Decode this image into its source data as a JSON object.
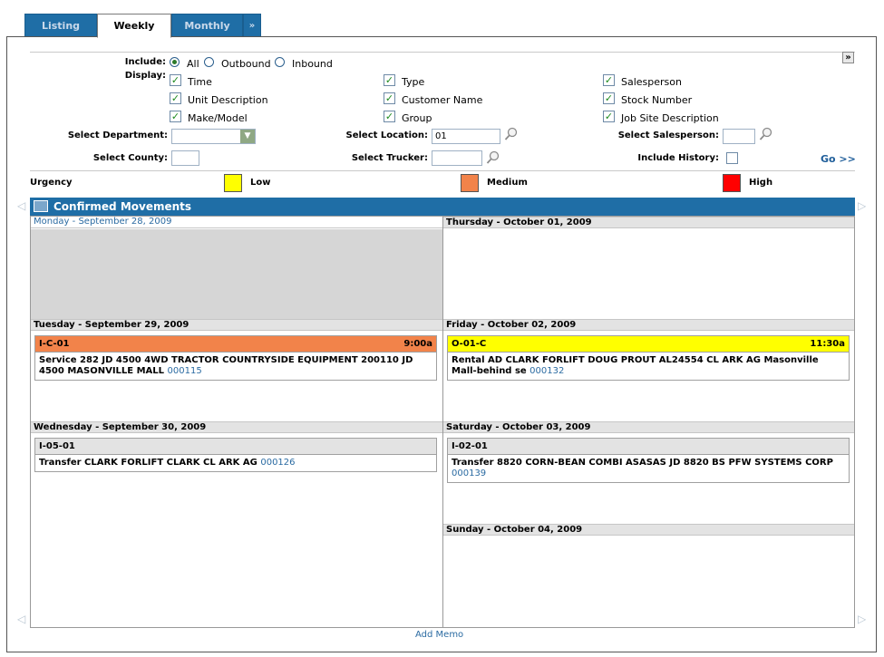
{
  "tabs": [
    {
      "label": "Listing"
    },
    {
      "label": "Weekly"
    },
    {
      "label": "Monthly"
    },
    {
      "label": "»"
    }
  ],
  "filters": {
    "include_label": "Include:",
    "include_options": [
      "All",
      "Outbound",
      "Inbound"
    ],
    "include_selected": "All",
    "display_label": "Display:",
    "display_options": [
      "Time",
      "Type",
      "Salesperson",
      "Unit Description",
      "Customer Name",
      "Stock Number",
      "Make/Model",
      "Group",
      "Job Site Description"
    ],
    "department_label": "Select Department:",
    "location_label": "Select Location:",
    "location_value": "01",
    "salesperson_label": "Select Salesperson:",
    "county_label": "Select County:",
    "trucker_label": "Select Trucker:",
    "history_label": "Include History:",
    "go_label": "Go >>"
  },
  "urgency": {
    "label": "Urgency",
    "levels": [
      {
        "name": "Low",
        "color": "#ffff00"
      },
      {
        "name": "Medium",
        "color": "#f2834a"
      },
      {
        "name": "High",
        "color": "#ff0000"
      }
    ]
  },
  "calendar": {
    "title": "Confirmed Movements",
    "days": [
      {
        "label": "Monday - September  28, 2009"
      },
      {
        "label": "Tuesday - September  29, 2009"
      },
      {
        "label": "Wednesday - September  30, 2009"
      },
      {
        "label": "Thursday - October  01, 2009"
      },
      {
        "label": "Friday - October  02, 2009"
      },
      {
        "label": "Saturday - October  03, 2009"
      },
      {
        "label": "Sunday - October  04, 2009"
      }
    ],
    "movements": [
      {
        "code": "I-C-01",
        "time": "9:00a",
        "desc": "Service 282 JD 4500 4WD TRACTOR COUNTRYSIDE EQUIPMENT 200110 JD 4500 MASONVILLE MALL",
        "ref": "000115",
        "color": "#f2834a"
      },
      {
        "code": "O-01-C",
        "time": "11:30a",
        "desc": "Rental AD CLARK FORLIFT DOUG PROUT AL24554 CL ARK AG Masonville Mall-behind se",
        "ref": "000132",
        "color": "#ffff00"
      },
      {
        "code": "I-05-01",
        "time": "",
        "desc": "Transfer CLARK FORLIFT CLARK CL ARK AG",
        "ref": "000126",
        "color": "#e3e3e3"
      },
      {
        "code": "I-02-01",
        "time": "",
        "desc": "Transfer 8820 CORN-BEAN COMBI ASASAS JD 8820 BS PFW SYSTEMS CORP",
        "ref": "000139",
        "color": "#e3e3e3"
      }
    ],
    "add_memo": "Add Memo"
  },
  "icons": {
    "magnifier": "magnifier-icon",
    "calendar": "calendar-icon",
    "expand": "double-chevron-right-icon"
  }
}
